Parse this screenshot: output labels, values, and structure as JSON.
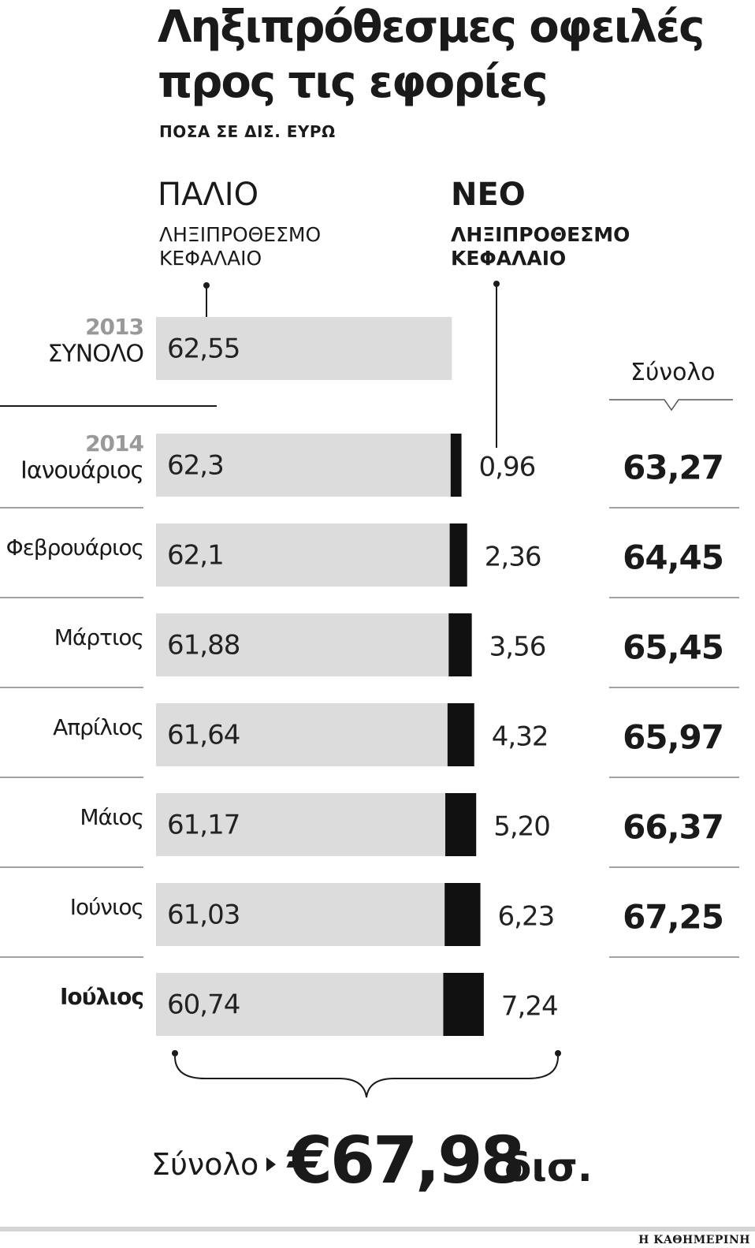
{
  "title": "Ληξιπρόθεσμες οφειλές προς τις εφορίες",
  "subtitle": "ΠΟΣΑ ΣΕ ΔΙΣ. ΕΥΡΩ",
  "columns": {
    "old_head": "ΠΑΛΙΟ",
    "old_sub": "ΛΗΞΙΠΡΟΘΕΣΜΟ ΚΕΦΑΛΑΙΟ",
    "new_head": "ΝΕΟ",
    "new_sub": "ΛΗΞΙΠΡΟΘΕΣΜΟ ΚΕΦΑΛΑΙΟ",
    "total_head": "Σύνολο"
  },
  "chart_data": {
    "type": "bar",
    "stacked": true,
    "orientation": "horizontal",
    "rows": [
      {
        "year": "2013",
        "label": "ΣΥΝΟΛΟ",
        "old": 62.55,
        "old_label": "62,55",
        "new": null,
        "new_label": "",
        "total_label": "",
        "bold": false
      },
      {
        "year": "2014",
        "label": "Ιανουάριος",
        "old": 62.3,
        "old_label": "62,3",
        "new": 0.96,
        "new_label": "0,96",
        "total_label": "63,27",
        "bold": false
      },
      {
        "year": "",
        "label": "Φεβρουάριος",
        "old": 62.1,
        "old_label": "62,1",
        "new": 2.36,
        "new_label": "2,36",
        "total_label": "64,45",
        "bold": false
      },
      {
        "year": "",
        "label": "Μάρτιος",
        "old": 61.88,
        "old_label": "61,88",
        "new": 3.56,
        "new_label": "3,56",
        "total_label": "65,45",
        "bold": false
      },
      {
        "year": "",
        "label": "Απρίλιος",
        "old": 61.64,
        "old_label": "61,64",
        "new": 4.32,
        "new_label": "4,32",
        "total_label": "65,97",
        "bold": false
      },
      {
        "year": "",
        "label": "Μάιος",
        "old": 61.17,
        "old_label": "61,17",
        "new": 5.2,
        "new_label": "5,20",
        "total_label": "66,37",
        "bold": false
      },
      {
        "year": "",
        "label": "Ιούνιος",
        "old": 61.03,
        "old_label": "61,03",
        "new": 6.23,
        "new_label": "6,23",
        "total_label": "67,25",
        "bold": false
      },
      {
        "year": "",
        "label": "Ιούλιος",
        "old": 60.74,
        "old_label": "60,74",
        "new": 7.24,
        "new_label": "7,24",
        "total_label": "",
        "bold": true
      }
    ],
    "colors": {
      "old": "#dcdcdc",
      "new": "#111111",
      "year": "#999999"
    }
  },
  "grand_total": {
    "label": "Σύνολο",
    "value": "€67,98",
    "unit": "δισ."
  },
  "credit": "Η ΚΑΘΗΜΕΡΙΝΗ"
}
